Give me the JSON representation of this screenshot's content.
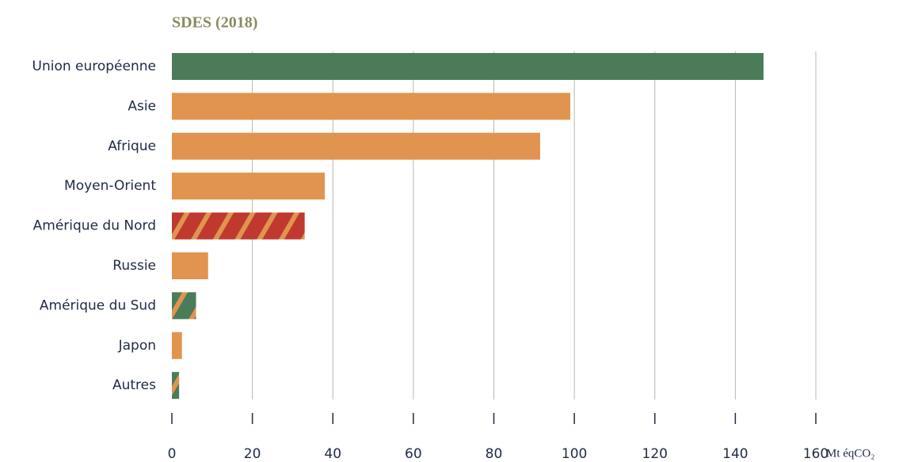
{
  "chart_data": {
    "type": "bar",
    "orientation": "horizontal",
    "title": "SDES (2018)",
    "x_label": "Mt éqCO₂",
    "categories": [
      "Union européenne",
      "Asie",
      "Afrique",
      "Moyen-Orient",
      "Amérique du Nord",
      "Russie",
      "Amérique du Sud",
      "Japon",
      "Autres"
    ],
    "values": [
      147,
      99,
      91.5,
      38,
      33,
      9,
      6,
      2.5,
      1.8
    ],
    "colors": [
      "#4a7c59",
      "#e0944f",
      "#e0944f",
      "#e0944f",
      "#c0392f",
      "#e0944f",
      "#4a7c59",
      "#e0944f",
      "#4a7c59"
    ],
    "hatch": [
      null,
      null,
      null,
      null,
      "#e0944f",
      null,
      "#e0944f",
      null,
      "#e0944f"
    ],
    "xlim": [
      0,
      160
    ],
    "xticks": [
      0,
      20,
      40,
      60,
      80,
      100,
      120,
      140,
      160
    ],
    "grid": true
  }
}
